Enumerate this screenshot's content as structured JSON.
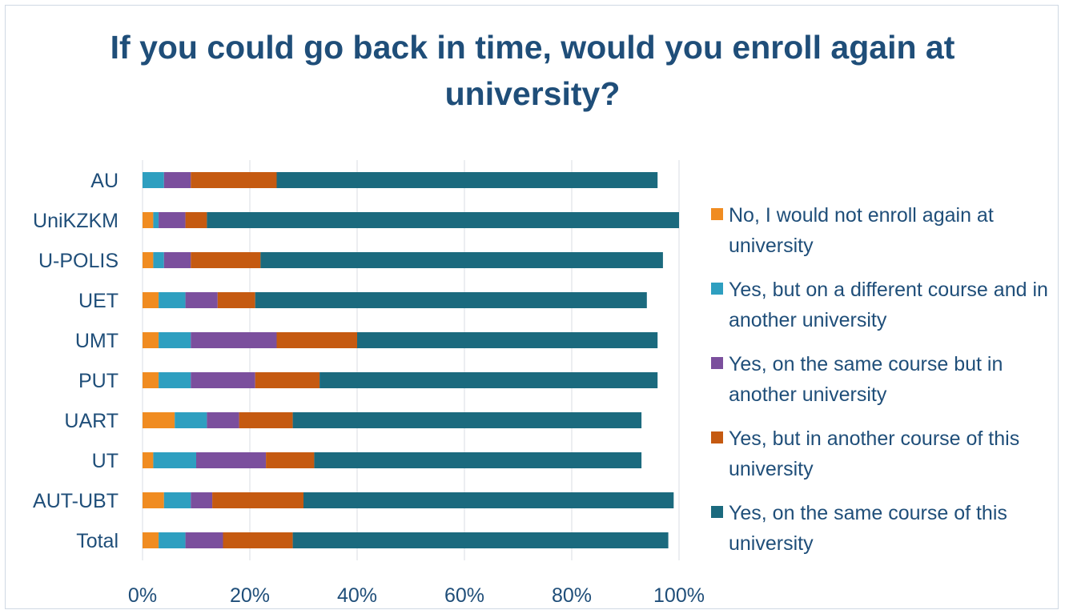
{
  "chart_data": {
    "type": "bar",
    "orientation": "horizontal",
    "stacked": "percent",
    "title": "If you could go back in time, would you enroll again at university?",
    "categories": [
      "AU",
      "UniKZKM",
      "U-POLIS",
      "UET",
      "UMT",
      "PUT",
      "UART",
      "UT",
      "AUT-UBT",
      "Total"
    ],
    "series": [
      {
        "name": "No, I would not enroll again at university",
        "color": "#f08c21",
        "values": [
          0,
          2,
          2,
          3,
          3,
          3,
          6,
          2,
          4,
          3
        ]
      },
      {
        "name": "Yes, but on a different course and in another university",
        "color": "#2e9fc0",
        "values": [
          4,
          1,
          2,
          5,
          6,
          6,
          6,
          8,
          5,
          5
        ]
      },
      {
        "name": "Yes, on the same course but in another university",
        "color": "#7b4f9d",
        "values": [
          5,
          5,
          5,
          6,
          16,
          12,
          6,
          13,
          4,
          7
        ]
      },
      {
        "name": "Yes, but in another course of this university",
        "color": "#c55a11",
        "values": [
          16,
          4,
          13,
          7,
          15,
          12,
          10,
          9,
          17,
          13
        ]
      },
      {
        "name": "Yes, on the same course of this university",
        "color": "#1b6a7e",
        "values": [
          71,
          88,
          75,
          73,
          56,
          63,
          65,
          61,
          69,
          70
        ]
      }
    ],
    "xlim": [
      0,
      100
    ],
    "x_ticks": [
      "0%",
      "20%",
      "40%",
      "60%",
      "80%",
      "100%"
    ],
    "grid": true,
    "legend_position": "right"
  }
}
